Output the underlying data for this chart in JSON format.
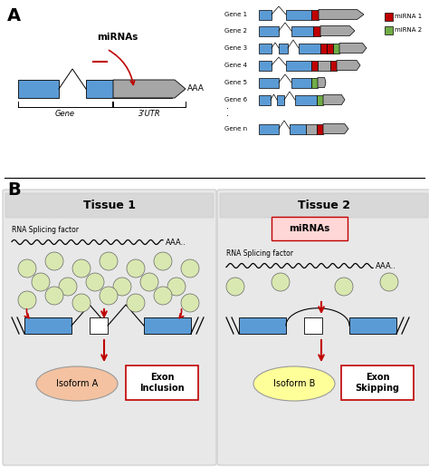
{
  "panel_A_label": "A",
  "panel_B_label": "B",
  "blue_color": "#5B9BD5",
  "gray_color": "#A6A6A6",
  "red_color": "#C00000",
  "green_color": "#70AD47",
  "light_green_circle": "#D9E8B0",
  "tissue1_title": "Tissue 1",
  "tissue2_title": "Tissue 2",
  "isoform_a_color": "#F4C2A1",
  "isoform_b_color": "#FFFF99",
  "bg_color": "#FFFFFF",
  "panel_bg": "#E8E8E8",
  "miRNA_box_color": "#FFD7D7",
  "border_color": "#BBBBBB"
}
